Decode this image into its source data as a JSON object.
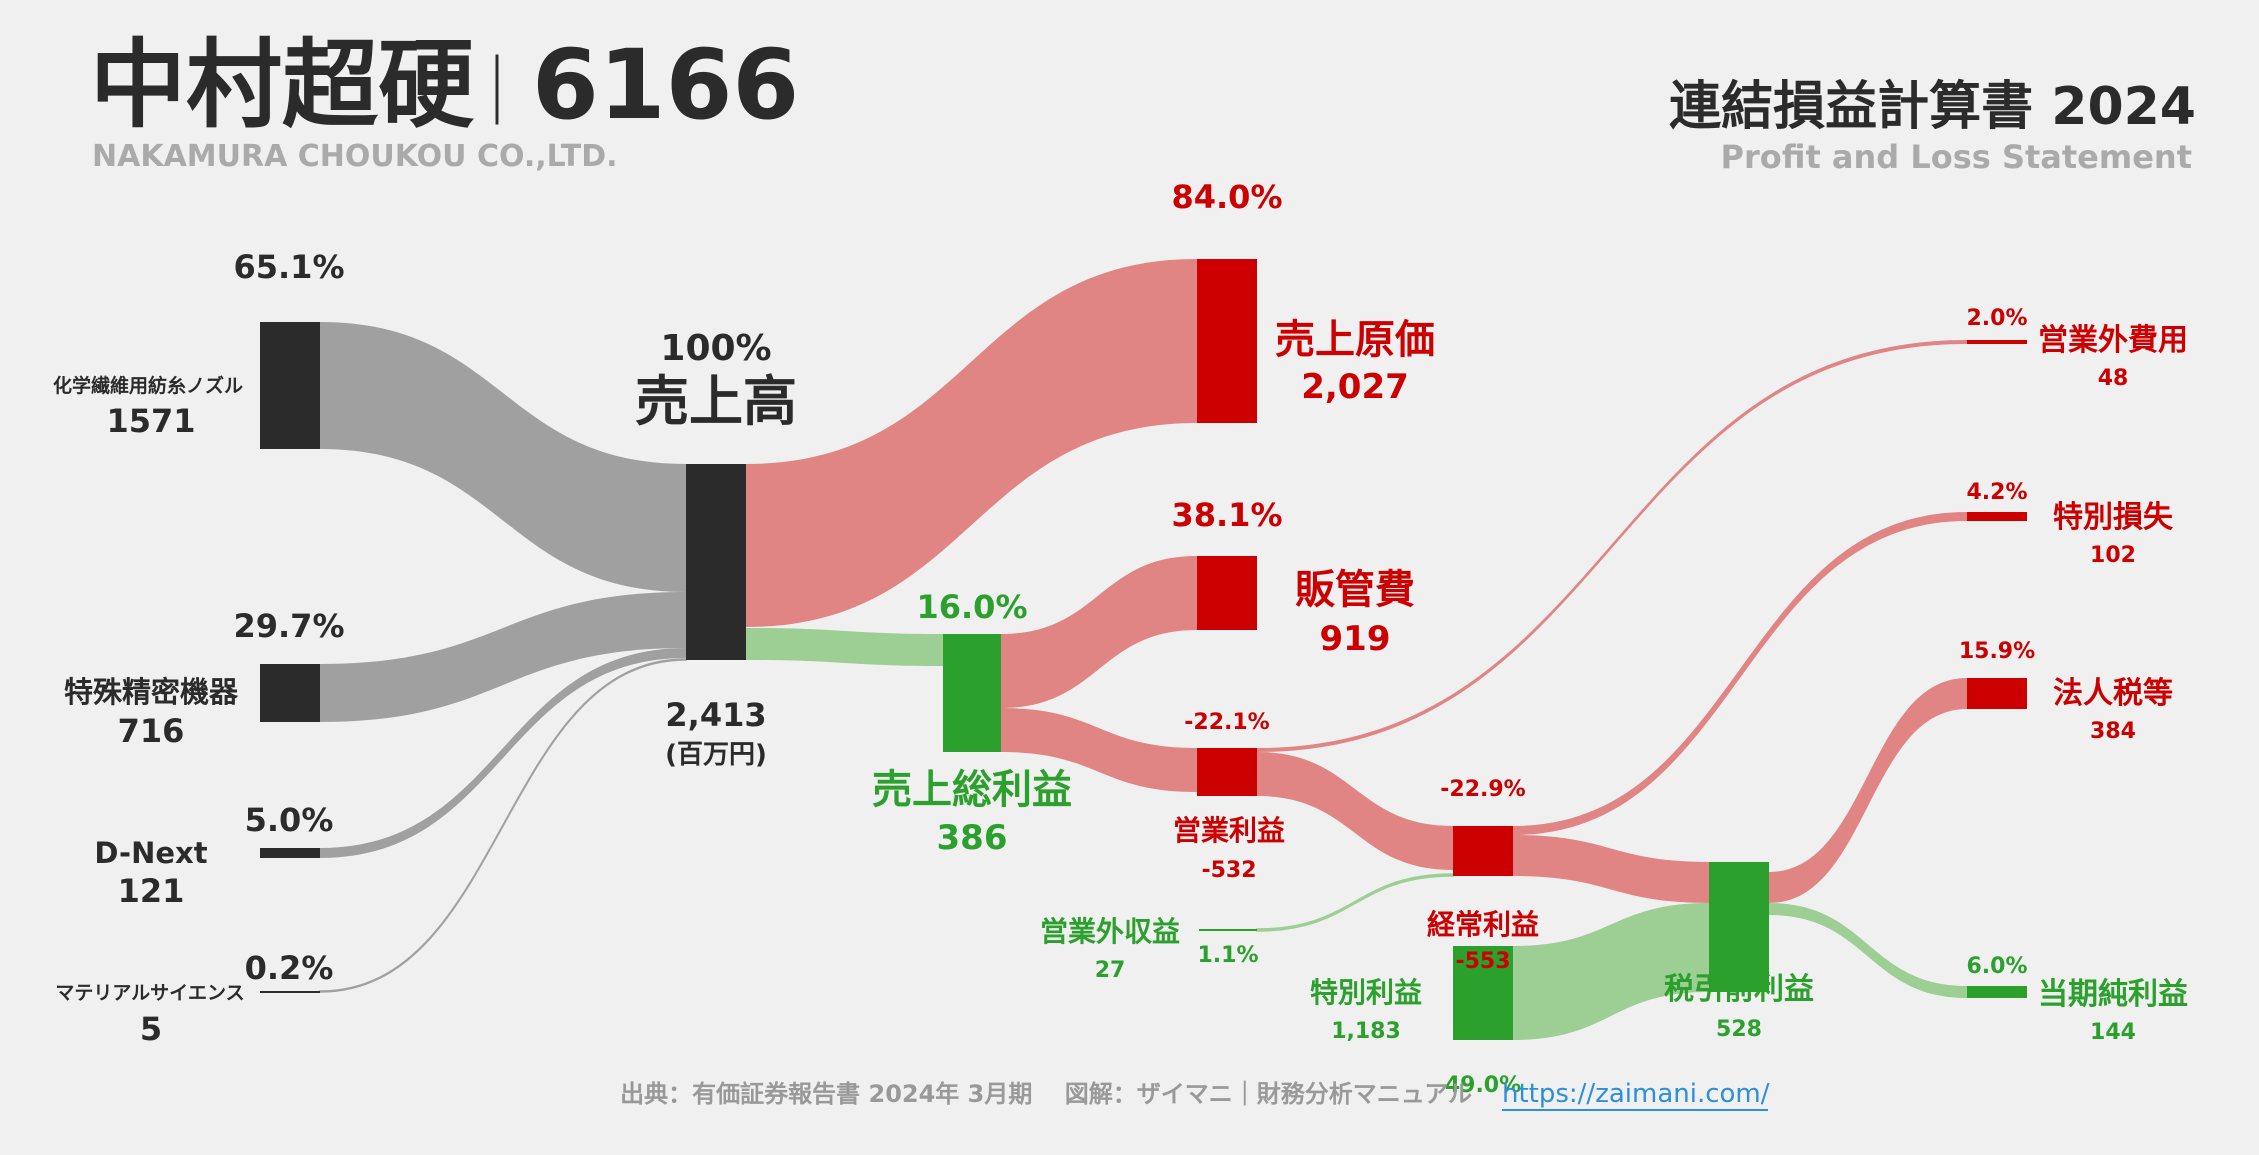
{
  "header": {
    "company": "中村超硬",
    "separator": "｜",
    "ticker": "6166",
    "company_en": "NAKAMURA CHOUKOU CO.,LTD.",
    "statement_title": "連結損益計算書 2024",
    "statement_subtitle": "Profit and Loss Statement"
  },
  "footer": {
    "source": "出典：有価証券報告書 2024年 3月期　 図解：ザイマニ｜財務分析マニュアル",
    "link": "https://zaimani.com/"
  },
  "colors": {
    "background": "#f0f0f0",
    "revenue_node": "#2b2b2b",
    "revenue_flow": "#a0a0a0",
    "loss_node": "#cc0000",
    "loss_flow": "#e08484",
    "profit_node": "#2ca02c",
    "profit_flow": "#9dce94",
    "link": "#2b8fd9"
  },
  "chart_data": {
    "type": "sankey",
    "unit": "(百万円)",
    "segments": [
      {
        "name": "化学繊維用紡糸ノズル",
        "value": 1571,
        "pct": "65.1%"
      },
      {
        "name": "特殊精密機器",
        "value": 716,
        "pct": "29.7%"
      },
      {
        "name": "D-Next",
        "value": 121,
        "pct": "5.0%"
      },
      {
        "name": "マテリアルサイエンス",
        "value": 5,
        "pct": "0.2%"
      }
    ],
    "revenue": {
      "name": "売上高",
      "value": "2,413",
      "pct": "100%"
    },
    "cost_of_sales": {
      "name": "売上原価",
      "value": "2,027",
      "pct": "84.0%"
    },
    "gross_profit": {
      "name": "売上総利益",
      "value": "386",
      "pct": "16.0%"
    },
    "sga": {
      "name": "販管費",
      "value": "919",
      "pct": "38.1%"
    },
    "operating_profit": {
      "name": "営業利益",
      "value": "-532",
      "pct": "-22.1%"
    },
    "non_operating_income": {
      "name": "営業外収益",
      "value": "27",
      "pct": "1.1%"
    },
    "non_operating_expense": {
      "name": "営業外費用",
      "value": "48",
      "pct": "2.0%"
    },
    "ordinary_profit": {
      "name": "経常利益",
      "value": "-553",
      "pct": "-22.9%"
    },
    "extraordinary_income": {
      "name": "特別利益",
      "value": "1,183",
      "pct": "49.0%"
    },
    "extraordinary_loss": {
      "name": "特別損失",
      "value": "102",
      "pct": "4.2%"
    },
    "pretax_profit": {
      "name": "税引前利益",
      "value": "528"
    },
    "income_tax": {
      "name": "法人税等",
      "value": "384",
      "pct": "15.9%"
    },
    "net_income": {
      "name": "当期純利益",
      "value": "144",
      "pct": "6.0%"
    },
    "flows": [
      {
        "from": "化学繊維用紡糸ノズル",
        "to": "売上高",
        "value": 1571
      },
      {
        "from": "特殊精密機器",
        "to": "売上高",
        "value": 716
      },
      {
        "from": "D-Next",
        "to": "売上高",
        "value": 121
      },
      {
        "from": "マテリアルサイエンス",
        "to": "売上高",
        "value": 5
      },
      {
        "from": "売上高",
        "to": "売上原価",
        "value": 2027
      },
      {
        "from": "売上高",
        "to": "売上総利益",
        "value": 386
      },
      {
        "from": "売上総利益",
        "to": "販管費",
        "value": 386
      },
      {
        "from": "販管費",
        "to": "営業利益",
        "value": 532
      },
      {
        "from": "営業利益",
        "to": "営業外費用",
        "value": 48
      },
      {
        "from": "営業利益",
        "to": "経常利益",
        "value": 553
      },
      {
        "from": "営業外収益",
        "to": "経常利益",
        "value": 27
      },
      {
        "from": "経常利益",
        "to": "特別損失",
        "value": 102
      },
      {
        "from": "経常利益",
        "to": "税引前利益",
        "value": 553
      },
      {
        "from": "特別利益",
        "to": "税引前利益",
        "value": 1183
      },
      {
        "from": "税引前利益",
        "to": "法人税等",
        "value": 384
      },
      {
        "from": "税引前利益",
        "to": "当期純利益",
        "value": 144
      }
    ]
  }
}
